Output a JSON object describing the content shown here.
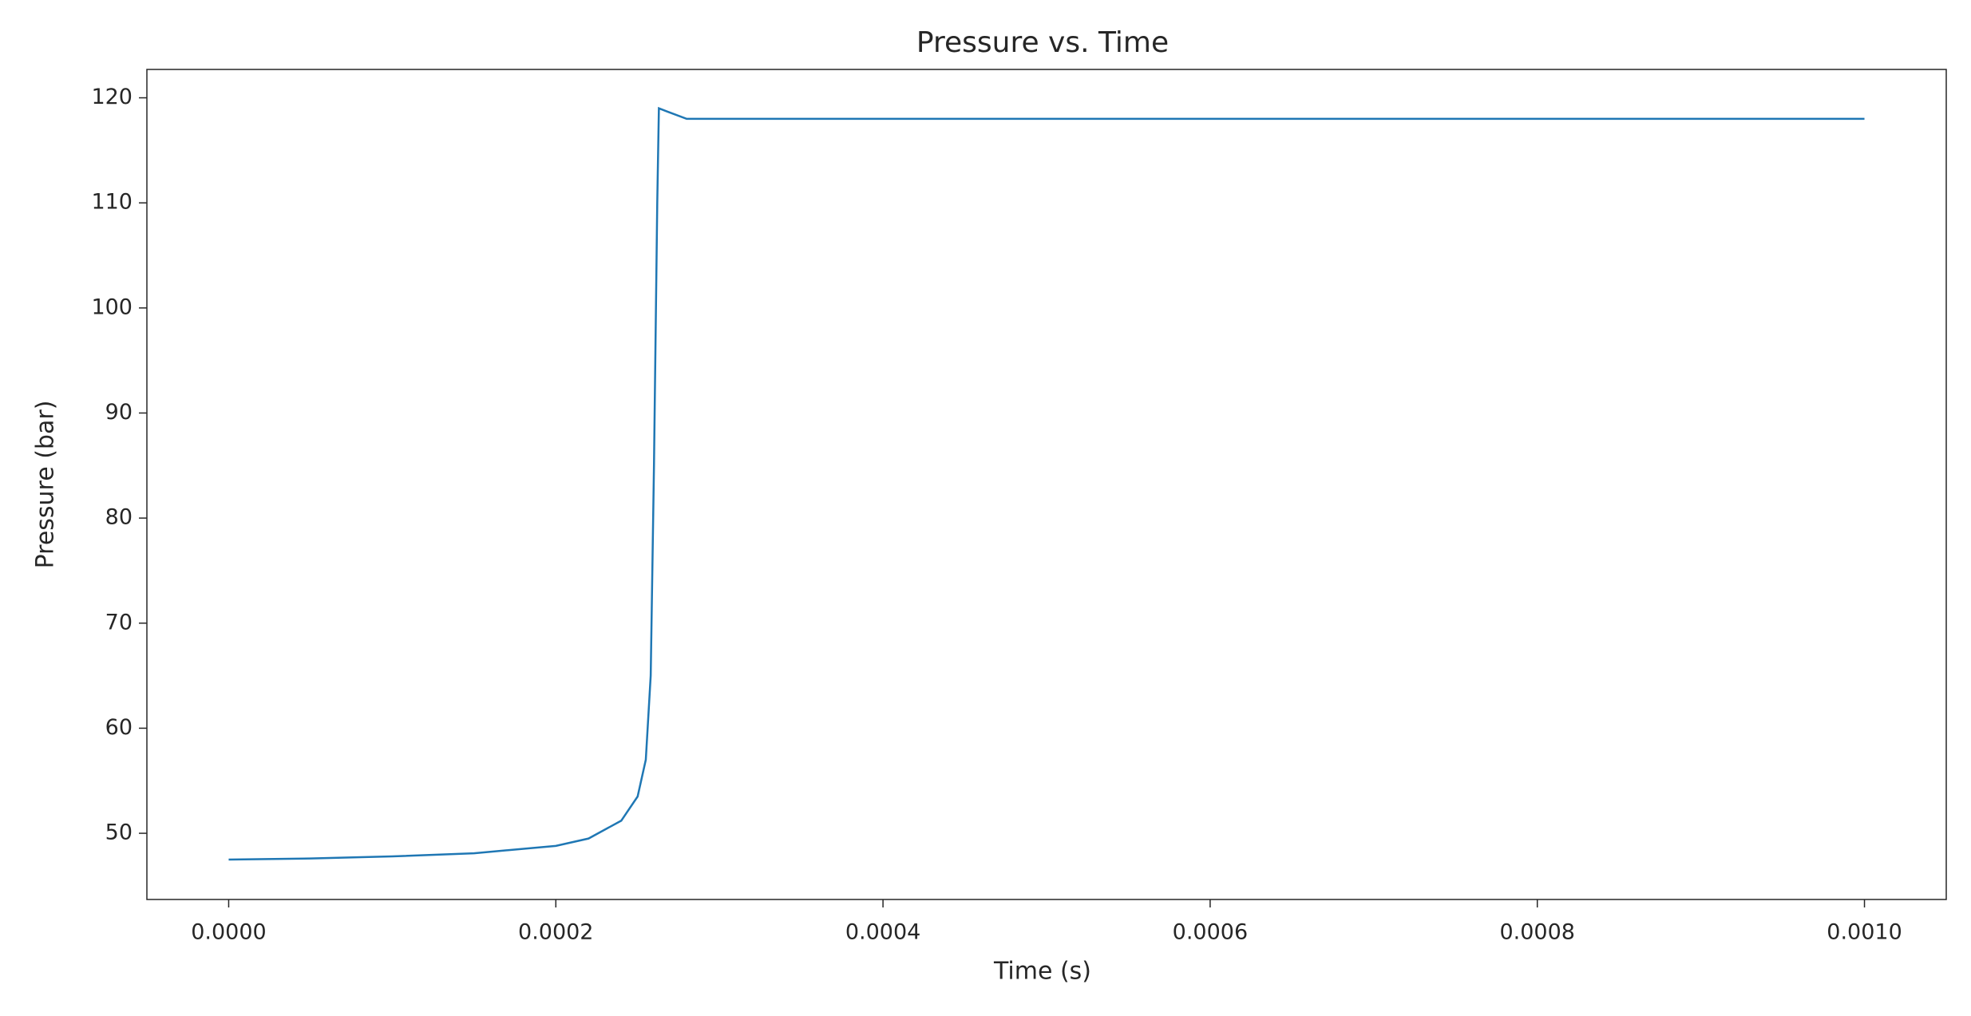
{
  "chart_data": {
    "type": "line",
    "title": "Pressure vs. Time",
    "xlabel": "Time (s)",
    "ylabel": "Pressure (bar)",
    "x": [
      0,
      5e-05,
      0.0001,
      0.00015,
      0.0002,
      0.00022,
      0.00024,
      0.00025,
      0.000255,
      0.000258,
      0.00026,
      0.000262,
      0.000263,
      0.000268,
      0.00028,
      0.0003,
      0.0006,
      0.001
    ],
    "values": [
      47.5,
      47.6,
      47.8,
      48.1,
      48.8,
      49.5,
      51.2,
      53.5,
      57,
      65,
      85,
      110,
      119,
      118.7,
      118,
      118,
      118,
      118
    ],
    "color": "#1f77b4",
    "xlim": [
      -5e-05,
      0.00105
    ],
    "ylim": [
      43.7,
      122.7
    ],
    "xticks": [
      {
        "value": 0,
        "label": "0.0000"
      },
      {
        "value": 0.0002,
        "label": "0.0002"
      },
      {
        "value": 0.0004,
        "label": "0.0004"
      },
      {
        "value": 0.0006,
        "label": "0.0006"
      },
      {
        "value": 0.0008,
        "label": "0.0008"
      },
      {
        "value": 0.001,
        "label": "0.0010"
      }
    ],
    "yticks": [
      50,
      60,
      70,
      80,
      90,
      100,
      110,
      120
    ]
  }
}
